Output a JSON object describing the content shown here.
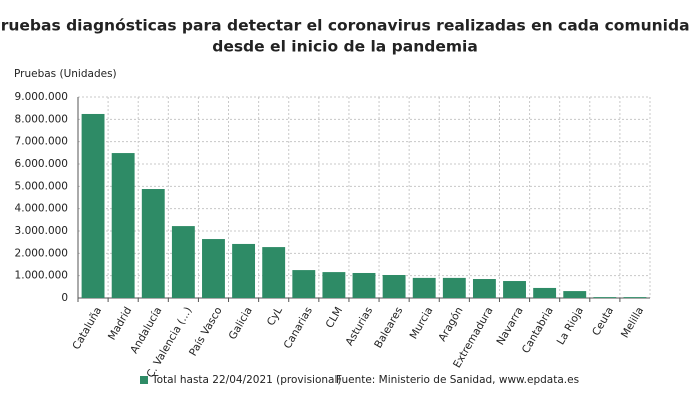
{
  "chart_data": {
    "type": "bar",
    "title": [
      "Pruebas diagnósticas para detectar el coronavirus realizadas en cada comunidad",
      "desde el inicio de la pandemia"
    ],
    "y_label": "Pruebas (Unidades)",
    "categories": [
      "Cataluña",
      "Madrid",
      "Andalucía",
      "C. Valencia (...)",
      "País Vasco",
      "Galicia",
      "CyL",
      "Canarias",
      "CLM",
      "Asturias",
      "Baleares",
      "Murcia",
      "Aragón",
      "Extremadura",
      "Navarra",
      "Cantabria",
      "La Rioja",
      "Ceuta",
      "Melilla"
    ],
    "series": [
      {
        "name": "Total hasta 22/04/2021 (provisional)",
        "color": "#2e8b66",
        "values": [
          8240000,
          6490000,
          4880000,
          3220000,
          2640000,
          2420000,
          2280000,
          1250000,
          1160000,
          1120000,
          1030000,
          900000,
          900000,
          850000,
          760000,
          450000,
          310000,
          40000,
          40000
        ]
      }
    ],
    "source": "Fuente: Ministerio de Sanidad, www.epdata.es",
    "ylim": [
      0,
      9000000
    ],
    "yticks": [
      0,
      {
        "value": 1000000,
        "label": "1.000.000"
      },
      {
        "value": 2000000,
        "label": "2.000.000"
      },
      {
        "value": 3000000,
        "label": "3.000.000"
      },
      {
        "value": 4000000,
        "label": "4.000.000"
      },
      {
        "value": 5000000,
        "label": "5.000.000"
      },
      {
        "value": 6000000,
        "label": "6.000.000"
      },
      {
        "value": 7000000,
        "label": "7.000.000"
      },
      {
        "value": 8000000,
        "label": "8.000.000"
      },
      {
        "value": 9000000,
        "label": "9.000.000"
      }
    ],
    "grid": true
  }
}
